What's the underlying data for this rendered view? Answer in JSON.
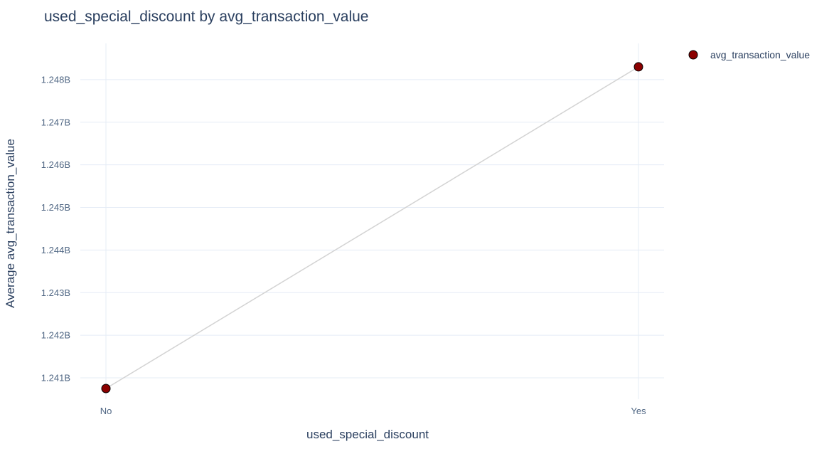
{
  "chart_data": {
    "type": "line",
    "title": "used_special_discount by avg_transaction_value",
    "xlabel": "used_special_discount",
    "ylabel": "Average avg_transaction_value",
    "categories": [
      "No",
      "Yes"
    ],
    "series": [
      {
        "name": "avg_transaction_value",
        "values": [
          1240750000,
          1248300000
        ],
        "marker_color": "#8b0000",
        "line_color": "#d3d3d3"
      }
    ],
    "y_ticks": [
      1241000000,
      1242000000,
      1243000000,
      1244000000,
      1245000000,
      1246000000,
      1247000000,
      1248000000
    ],
    "y_tick_labels": [
      "1.241B",
      "1.242B",
      "1.243B",
      "1.244B",
      "1.245B",
      "1.246B",
      "1.247B",
      "1.248B"
    ],
    "ylim": [
      1240500000,
      1248850000
    ],
    "grid": true,
    "legend_position": "top-right"
  }
}
